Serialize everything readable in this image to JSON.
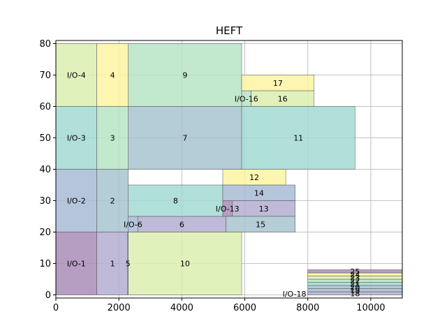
{
  "chart_data": {
    "type": "gantt",
    "title": "HEFT",
    "xlim": [
      0,
      11000
    ],
    "ylim": [
      -1,
      81
    ],
    "x_ticks": [
      0,
      2000,
      4000,
      6000,
      8000,
      10000
    ],
    "y_ticks": [
      0,
      10,
      20,
      30,
      40,
      50,
      60,
      70,
      80
    ],
    "grid": true,
    "palette": {
      "purple": "#a98cb7",
      "lavender": "#b3aed0",
      "blue": "#a7bbd6",
      "teal": "#a3d9d2",
      "mint": "#b7e4c6",
      "lime": "#dceeb0",
      "yellow": "#fcf4a2",
      "steel": "#a7c4cf"
    },
    "bars": [
      {
        "label": "I/O-1",
        "x0": 0,
        "x1": 1300,
        "y0": 0,
        "y1": 20,
        "color": "#a98cb7"
      },
      {
        "label": "1",
        "x0": 1300,
        "x1": 2300,
        "y0": 0,
        "y1": 20,
        "color": "#b3aed0"
      },
      {
        "label": "5",
        "x0": 2280,
        "x1": 2300,
        "y0": 0,
        "y1": 20,
        "color": "#b3aed0"
      },
      {
        "label": "10",
        "x0": 2300,
        "x1": 5900,
        "y0": 0,
        "y1": 20,
        "color": "#dceeb0"
      },
      {
        "label": "I/O-2",
        "x0": 0,
        "x1": 1300,
        "y0": 20,
        "y1": 40,
        "color": "#a7bbd6"
      },
      {
        "label": "2",
        "x0": 1300,
        "x1": 2300,
        "y0": 20,
        "y1": 40,
        "color": "#a7c4cf"
      },
      {
        "label": "I/O-6",
        "x0": 2300,
        "x1": 2600,
        "y0": 20,
        "y1": 25,
        "color": "#a7bbd6"
      },
      {
        "label": "6",
        "x0": 2600,
        "x1": 5400,
        "y0": 20,
        "y1": 25,
        "color": "#b3aed0"
      },
      {
        "label": "8",
        "x0": 2300,
        "x1": 5300,
        "y0": 25,
        "y1": 35,
        "color": "#a3d9d2"
      },
      {
        "label": "I/O-13",
        "x0": 5300,
        "x1": 5600,
        "y0": 25,
        "y1": 30,
        "color": "#a98cb7"
      },
      {
        "label": "13",
        "x0": 5600,
        "x1": 7600,
        "y0": 25,
        "y1": 30,
        "color": "#b3aed0"
      },
      {
        "label": "15",
        "x0": 5400,
        "x1": 7600,
        "y0": 20,
        "y1": 25,
        "color": "#a7c4cf"
      },
      {
        "label": "14",
        "x0": 5300,
        "x1": 7600,
        "y0": 30,
        "y1": 35,
        "color": "#a7bbd6"
      },
      {
        "label": "12",
        "x0": 5300,
        "x1": 7300,
        "y0": 35,
        "y1": 40,
        "color": "#fcf4a2"
      },
      {
        "label": "I/O-3",
        "x0": 0,
        "x1": 1300,
        "y0": 40,
        "y1": 60,
        "color": "#a3d9d2"
      },
      {
        "label": "3",
        "x0": 1300,
        "x1": 2300,
        "y0": 40,
        "y1": 60,
        "color": "#b7e4c6"
      },
      {
        "label": "7",
        "x0": 2300,
        "x1": 5900,
        "y0": 40,
        "y1": 60,
        "color": "#a7c4cf"
      },
      {
        "label": "11",
        "x0": 5900,
        "x1": 9500,
        "y0": 40,
        "y1": 60,
        "color": "#a3d9d2"
      },
      {
        "label": "I/O-4",
        "x0": 0,
        "x1": 1300,
        "y0": 60,
        "y1": 80,
        "color": "#dceeb0"
      },
      {
        "label": "4",
        "x0": 1300,
        "x1": 2300,
        "y0": 60,
        "y1": 80,
        "color": "#fcf4a2"
      },
      {
        "label": "9",
        "x0": 2300,
        "x1": 5900,
        "y0": 60,
        "y1": 80,
        "color": "#b7e4c6"
      },
      {
        "label": "I/O-16",
        "x0": 5900,
        "x1": 6200,
        "y0": 60,
        "y1": 65,
        "color": "#b7e4c6"
      },
      {
        "label": "16",
        "x0": 6200,
        "x1": 8200,
        "y0": 60,
        "y1": 65,
        "color": "#dceeb0"
      },
      {
        "label": "17",
        "x0": 5900,
        "x1": 8200,
        "y0": 65,
        "y1": 70,
        "color": "#fcf4a2"
      },
      {
        "label": "I/O-18",
        "x0": 8000,
        "x1": 8001,
        "y0": 0,
        "y1": 1,
        "color": "#a98cb7",
        "label_x": 7950,
        "label_y": 0.3,
        "label_anchor": "end"
      },
      {
        "label": "18",
        "x0": 8000,
        "x1": 11000,
        "y0": 0,
        "y1": 1,
        "color": "#b3aed0"
      },
      {
        "label": "19",
        "x0": 8000,
        "x1": 11000,
        "y0": 1,
        "y1": 2,
        "color": "#a7bbd6"
      },
      {
        "label": "20",
        "x0": 8000,
        "x1": 11000,
        "y0": 2,
        "y1": 3,
        "color": "#a7c4cf"
      },
      {
        "label": "21",
        "x0": 8000,
        "x1": 11000,
        "y0": 3,
        "y1": 4,
        "color": "#a3d9d2"
      },
      {
        "label": "22",
        "x0": 8000,
        "x1": 11000,
        "y0": 4,
        "y1": 5,
        "color": "#b7e4c6"
      },
      {
        "label": "23",
        "x0": 8000,
        "x1": 11000,
        "y0": 5,
        "y1": 6,
        "color": "#dceeb0"
      },
      {
        "label": "24",
        "x0": 8000,
        "x1": 11000,
        "y0": 6,
        "y1": 7,
        "color": "#fcf4a2"
      },
      {
        "label": "25",
        "x0": 8000,
        "x1": 11000,
        "y0": 7,
        "y1": 8,
        "color": "#a98cb7"
      }
    ]
  }
}
